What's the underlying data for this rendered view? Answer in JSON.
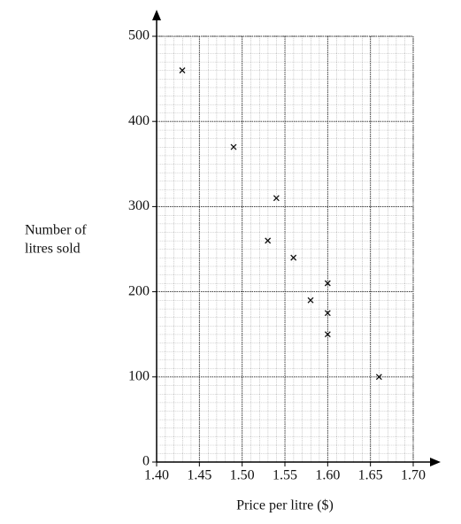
{
  "chart_data": {
    "type": "scatter",
    "xlabel": "Price per litre ($)",
    "ylabel": [
      "Number of",
      "litres sold"
    ],
    "x": [
      1.43,
      1.49,
      1.54,
      1.53,
      1.56,
      1.58,
      1.6,
      1.6,
      1.6,
      1.66
    ],
    "values": [
      460,
      370,
      310,
      260,
      240,
      190,
      210,
      175,
      150,
      100
    ],
    "color": "#111111",
    "xlim": [
      1.4,
      1.7
    ],
    "ylim": [
      0,
      500
    ],
    "xticks": [
      {
        "value": 1.4,
        "label": "1.40"
      },
      {
        "value": 1.45,
        "label": "1.45"
      },
      {
        "value": 1.5,
        "label": "1.50"
      },
      {
        "value": 1.55,
        "label": "1.55"
      },
      {
        "value": 1.6,
        "label": "1.60"
      },
      {
        "value": 1.65,
        "label": "1.65"
      },
      {
        "value": 1.7,
        "label": "1.70"
      }
    ],
    "yticks": [
      0,
      100,
      200,
      300,
      400,
      500
    ],
    "grid": true
  }
}
